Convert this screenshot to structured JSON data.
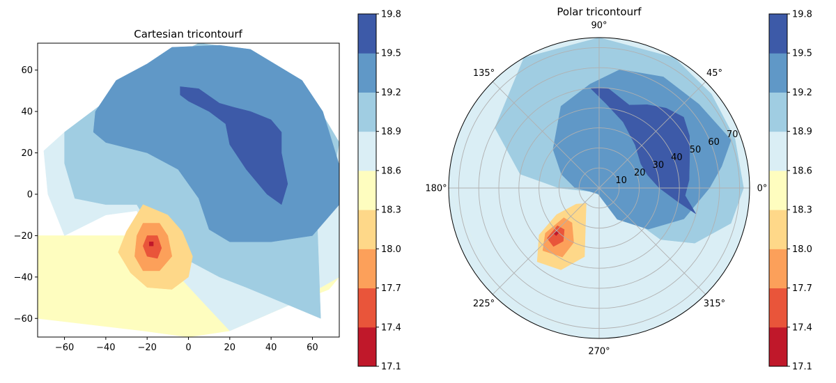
{
  "chart_data": [
    {
      "type": "heatmap",
      "subtype": "tricontourf",
      "title": "Cartesian tricontourf",
      "xlim": [
        -73,
        73
      ],
      "ylim": [
        -69,
        73
      ],
      "xticks": [
        -60,
        -40,
        -20,
        0,
        20,
        40,
        60
      ],
      "yticks": [
        -60,
        -40,
        -20,
        0,
        20,
        40,
        60
      ],
      "x_tick_labels": [
        "−60",
        "−40",
        "−20",
        "0",
        "20",
        "40",
        "60"
      ],
      "y_tick_labels": [
        "−60",
        "−40",
        "−20",
        "0",
        "20",
        "40",
        "60"
      ],
      "colorbar": {
        "levels": [
          17.1,
          17.4,
          17.7,
          18.0,
          18.3,
          18.6,
          18.9,
          19.2,
          19.5,
          19.8
        ],
        "labels": [
          "17.1",
          "17.4",
          "17.7",
          "18.0",
          "18.3",
          "18.6",
          "18.9",
          "19.2",
          "19.5",
          "19.8"
        ],
        "colors": [
          "#c0182a",
          "#e9553a",
          "#fca05a",
          "#fed889",
          "#fefdbf",
          "#daeef5",
          "#a0cde2",
          "#6098c7",
          "#3d5aa8"
        ]
      },
      "regions": [
        {
          "level": 4,
          "points": [
            [
              -73,
              19
            ],
            [
              -73,
              -60
            ],
            [
              -22,
              -66
            ],
            [
              0,
              -69
            ],
            [
              20,
              -66
            ],
            [
              50,
              -53
            ],
            [
              68,
              -46
            ],
            [
              73,
              -40
            ],
            [
              73,
              -20
            ],
            [
              10,
              -20
            ],
            [
              -73,
              -20
            ]
          ]
        },
        {
          "level": 5,
          "points": [
            [
              -70,
              21
            ],
            [
              -60,
              30
            ],
            [
              -40,
              45
            ],
            [
              -20,
              60
            ],
            [
              5,
              73
            ],
            [
              30,
              70
            ],
            [
              55,
              55
            ],
            [
              73,
              25
            ],
            [
              73,
              -40
            ],
            [
              50,
              -53
            ],
            [
              20,
              -66
            ],
            [
              5,
              -50
            ],
            [
              -8,
              -36
            ],
            [
              -15,
              -28
            ],
            [
              -25,
              -8
            ],
            [
              -40,
              -10
            ],
            [
              -60,
              -20
            ],
            [
              -68,
              0
            ]
          ]
        },
        {
          "level": 6,
          "points": [
            [
              -60,
              30
            ],
            [
              -40,
              45
            ],
            [
              -20,
              60
            ],
            [
              5,
              73
            ],
            [
              30,
              70
            ],
            [
              55,
              55
            ],
            [
              73,
              25
            ],
            [
              70,
              10
            ],
            [
              62,
              -5
            ],
            [
              64,
              -60
            ],
            [
              40,
              -50
            ],
            [
              28,
              -45
            ],
            [
              15,
              -40
            ],
            [
              0,
              -32
            ],
            [
              -15,
              -22
            ],
            [
              -25,
              -5
            ],
            [
              -40,
              -5
            ],
            [
              -55,
              -2
            ],
            [
              -60,
              15
            ]
          ]
        },
        {
          "level": 7,
          "points": [
            [
              -45,
              40
            ],
            [
              -35,
              55
            ],
            [
              -20,
              63
            ],
            [
              -8,
              71
            ],
            [
              15,
              72
            ],
            [
              30,
              70
            ],
            [
              55,
              55
            ],
            [
              65,
              40
            ],
            [
              73,
              14
            ],
            [
              73,
              -5
            ],
            [
              60,
              -20
            ],
            [
              40,
              -23
            ],
            [
              20,
              -23
            ],
            [
              10,
              -17
            ],
            [
              5,
              -2
            ],
            [
              -5,
              12
            ],
            [
              -20,
              20
            ],
            [
              -40,
              25
            ],
            [
              -46,
              30
            ]
          ]
        },
        {
          "level": 8,
          "points": [
            [
              -4,
              52
            ],
            [
              5,
              51
            ],
            [
              15,
              44
            ],
            [
              22,
              42
            ],
            [
              30,
              40
            ],
            [
              40,
              36
            ],
            [
              45,
              30
            ],
            [
              45,
              20
            ],
            [
              48,
              5
            ],
            [
              45,
              -5
            ],
            [
              38,
              0
            ],
            [
              28,
              12
            ],
            [
              20,
              24
            ],
            [
              18,
              34
            ],
            [
              10,
              40
            ],
            [
              0,
              45
            ],
            [
              -4,
              48
            ]
          ]
        },
        {
          "level": 3,
          "points": [
            [
              -22,
              -5
            ],
            [
              -10,
              -10
            ],
            [
              -3,
              -18
            ],
            [
              2,
              -30
            ],
            [
              0,
              -40
            ],
            [
              -8,
              -46
            ],
            [
              -20,
              -45
            ],
            [
              -28,
              -38
            ],
            [
              -34,
              -28
            ],
            [
              -30,
              -18
            ]
          ]
        },
        {
          "level": 2,
          "points": [
            [
              -22,
              -14
            ],
            [
              -14,
              -14
            ],
            [
              -10,
              -20
            ],
            [
              -8,
              -30
            ],
            [
              -14,
              -37
            ],
            [
              -22,
              -37
            ],
            [
              -26,
              -30
            ],
            [
              -25,
              -20
            ]
          ]
        },
        {
          "level": 1,
          "points": [
            [
              -20,
              -20
            ],
            [
              -15,
              -20
            ],
            [
              -13,
              -26
            ],
            [
              -15,
              -31
            ],
            [
              -20,
              -30
            ],
            [
              -22,
              -25
            ]
          ]
        },
        {
          "level": 0,
          "points": [
            [
              -19,
              -23
            ],
            [
              -17,
              -23
            ],
            [
              -17,
              -25
            ],
            [
              -19,
              -25
            ]
          ]
        }
      ]
    },
    {
      "type": "heatmap",
      "subtype": "tricontourf-polar",
      "title": "Polar tricontourf",
      "rmax": 75,
      "rticks": [
        10,
        20,
        30,
        40,
        50,
        60,
        70
      ],
      "r_tick_labels": [
        "10",
        "20",
        "30",
        "40",
        "50",
        "60",
        "70"
      ],
      "theta_ticks": [
        0,
        45,
        90,
        135,
        180,
        225,
        270,
        315
      ],
      "theta_tick_labels": [
        "0°",
        "45°",
        "90°",
        "135°",
        "180°",
        "225°",
        "270°",
        "315°"
      ],
      "colorbar": {
        "levels": [
          17.1,
          17.4,
          17.7,
          18.0,
          18.3,
          18.6,
          18.9,
          19.2,
          19.5,
          19.8
        ],
        "labels": [
          "17.1",
          "17.4",
          "17.7",
          "18.0",
          "18.3",
          "18.6",
          "18.9",
          "19.2",
          "19.5",
          "19.8"
        ],
        "colors": [
          "#c0182a",
          "#e9553a",
          "#fca05a",
          "#fed889",
          "#fefdbf",
          "#daeef5",
          "#a0cde2",
          "#6098c7",
          "#3d5aa8"
        ]
      },
      "regions": [
        {
          "level": 4,
          "points": [
            [
              180,
              75
            ],
            [
              230,
              75
            ],
            [
              270,
              75
            ],
            [
              285,
              60
            ],
            [
              260,
              35
            ],
            [
              220,
              20
            ],
            [
              200,
              10
            ],
            [
              180,
              5
            ]
          ]
        },
        {
          "level": 5,
          "points": [
            [
              120,
              75
            ],
            [
              180,
              75
            ],
            [
              230,
              75
            ],
            [
              270,
              75
            ],
            [
              300,
              72
            ],
            [
              320,
              60
            ],
            [
              315,
              40
            ],
            [
              300,
              25
            ],
            [
              280,
              10
            ],
            [
              220,
              5
            ],
            [
              180,
              8
            ],
            [
              140,
              20
            ]
          ]
        },
        {
          "level": 6,
          "points": [
            [
              60,
              75
            ],
            [
              90,
              75
            ],
            [
              120,
              75
            ],
            [
              150,
              60
            ],
            [
              170,
              40
            ],
            [
              180,
              20
            ],
            [
              200,
              5
            ],
            [
              250,
              3
            ],
            [
              290,
              5
            ],
            [
              320,
              40
            ],
            [
              330,
              55
            ],
            [
              345,
              68
            ],
            [
              0,
              72
            ],
            [
              20,
              72
            ],
            [
              40,
              73
            ]
          ]
        },
        {
          "level": 7,
          "points": [
            [
              20,
              70
            ],
            [
              40,
              65
            ],
            [
              60,
              64
            ],
            [
              80,
              60
            ],
            [
              95,
              52
            ],
            [
              115,
              45
            ],
            [
              140,
              30
            ],
            [
              160,
              20
            ],
            [
              180,
              12
            ],
            [
              200,
              5
            ],
            [
              260,
              3
            ],
            [
              300,
              18
            ],
            [
              320,
              32
            ],
            [
              340,
              45
            ],
            [
              0,
              55
            ],
            [
              10,
              62
            ]
          ]
        },
        {
          "level": 8,
          "points": [
            [
              95,
              50
            ],
            [
              85,
              50
            ],
            [
              70,
              44
            ],
            [
              60,
              48
            ],
            [
              50,
              52
            ],
            [
              40,
              55
            ],
            [
              30,
              52
            ],
            [
              20,
              48
            ],
            [
              5,
              45
            ],
            [
              355,
              43
            ],
            [
              345,
              50
            ],
            [
              350,
              40
            ],
            [
              0,
              30
            ],
            [
              15,
              25
            ],
            [
              30,
              24
            ],
            [
              50,
              28
            ],
            [
              70,
              35
            ],
            [
              85,
              42
            ]
          ]
        },
        {
          "level": 3,
          "points": [
            [
              215,
              14
            ],
            [
              230,
              10
            ],
            [
              248,
              18
            ],
            [
              258,
              35
            ],
            [
              245,
              45
            ],
            [
              230,
              48
            ],
            [
              218,
              38
            ],
            [
              212,
              25
            ]
          ]
        },
        {
          "level": 2,
          "points": [
            [
              220,
              23
            ],
            [
              232,
              22
            ],
            [
              245,
              30
            ],
            [
              242,
              39
            ],
            [
              228,
              42
            ],
            [
              220,
              35
            ]
          ]
        },
        {
          "level": 1,
          "points": [
            [
              222,
              28
            ],
            [
              230,
              27
            ],
            [
              236,
              32
            ],
            [
              232,
              37
            ],
            [
              224,
              36
            ]
          ]
        },
        {
          "level": 0,
          "points": [
            [
              225,
              30
            ],
            [
              228,
              30
            ],
            [
              228,
              32
            ],
            [
              225,
              32
            ]
          ]
        }
      ]
    }
  ]
}
